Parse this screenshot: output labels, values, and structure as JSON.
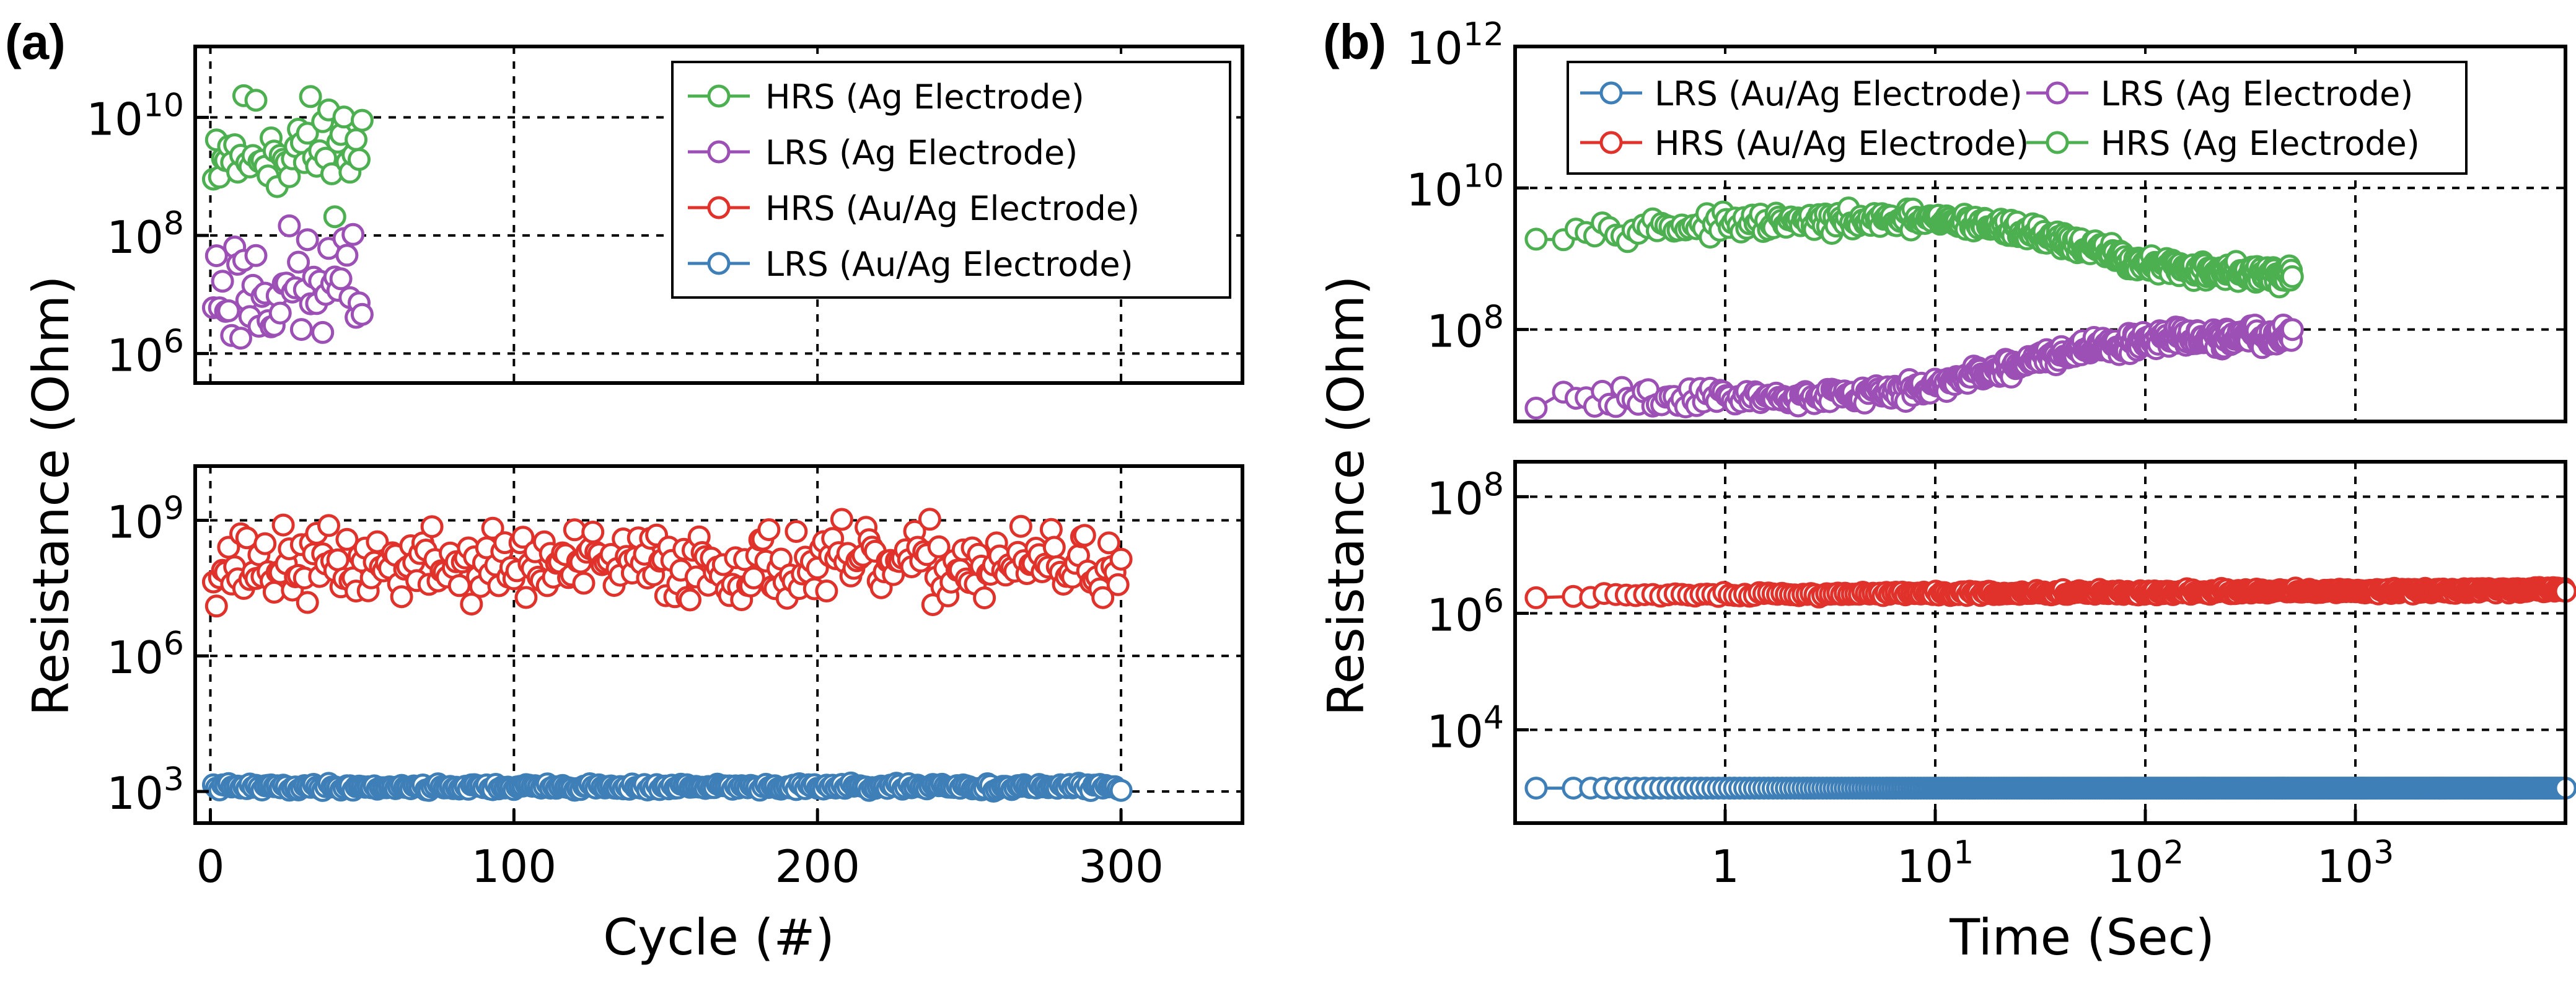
{
  "colors": {
    "green": "#4caf50",
    "purple": "#9c4fb5",
    "red": "#e0312a",
    "blue": "#3f7fb8"
  },
  "chart_data": [
    {
      "panel_label": "(a)",
      "type": "scatter",
      "xlabel": "Cycle (#)",
      "ylabel": "Resistance (Ohm)",
      "xlim": [
        -5,
        340
      ],
      "x_ticks": [
        {
          "value": 0,
          "label": "0"
        },
        {
          "value": 100,
          "label": "100"
        },
        {
          "value": 200,
          "label": "200"
        },
        {
          "value": 300,
          "label": "300"
        }
      ],
      "y_log": true,
      "grid": true,
      "broken_axis": true,
      "upper_ylim_log10": [
        5.5,
        11.2
      ],
      "upper_y_ticks": [
        {
          "exp": 6,
          "base": "10",
          "sup": "6"
        },
        {
          "exp": 8,
          "base": "10",
          "sup": "8"
        },
        {
          "exp": 10,
          "base": "10",
          "sup": "10"
        }
      ],
      "lower_ylim_log10": [
        2.3,
        10.2
      ],
      "lower_y_ticks": [
        {
          "exp": 3,
          "base": "10",
          "sup": "3"
        },
        {
          "exp": 6,
          "base": "10",
          "sup": "6"
        },
        {
          "exp": 9,
          "base": "10",
          "sup": "9"
        }
      ],
      "legend": {
        "position": "top-right",
        "entries": [
          {
            "label": "HRS (Ag Electrode)",
            "color": "green"
          },
          {
            "label": "LRS (Ag Electrode)",
            "color": "purple"
          },
          {
            "label": "HRS (Au/Ag Electrode)",
            "color": "red"
          },
          {
            "label": "LRS (Au/Ag Electrode)",
            "color": "blue"
          }
        ]
      },
      "series": [
        {
          "name": "HRS (Ag Electrode)",
          "color": "green",
          "axis": "upper",
          "x_range": [
            1,
            50
          ],
          "log10_center": 9.5,
          "log10_spread": 0.6,
          "seed": 11
        },
        {
          "name": "LRS (Ag Electrode)",
          "color": "purple",
          "axis": "upper",
          "x_range": [
            1,
            50
          ],
          "log10_center": 7.1,
          "log10_spread": 0.7,
          "seed": 23
        },
        {
          "name": "HRS (Au/Ag Electrode)",
          "color": "red",
          "axis": "lower",
          "x_range": [
            1,
            300
          ],
          "log10_center": 8.0,
          "log10_spread": 0.55,
          "seed": 37
        },
        {
          "name": "LRS (Au/Ag Electrode)",
          "color": "blue",
          "axis": "lower",
          "x_range": [
            1,
            300
          ],
          "log10_center": 3.1,
          "log10_spread": 0.05,
          "seed": 41
        }
      ]
    },
    {
      "panel_label": "(b)",
      "type": "line",
      "xlabel": "Time (Sec)",
      "ylabel": "Resistance (Ohm)",
      "x_log": true,
      "xlim_log10": [
        -1,
        4
      ],
      "x_ticks": [
        {
          "exp": 0,
          "base": "1",
          "sup": ""
        },
        {
          "exp": 1,
          "base": "10",
          "sup": "1"
        },
        {
          "exp": 2,
          "base": "10",
          "sup": "2"
        },
        {
          "exp": 3,
          "base": "10",
          "sup": "3"
        }
      ],
      "y_log": true,
      "grid": true,
      "broken_axis": true,
      "upper_ylim_log10": [
        6.7,
        12
      ],
      "upper_y_ticks": [
        {
          "exp": 8,
          "base": "10",
          "sup": "8"
        },
        {
          "exp": 10,
          "base": "10",
          "sup": "10"
        },
        {
          "exp": 12,
          "base": "10",
          "sup": "12"
        }
      ],
      "lower_ylim_log10": [
        2.4,
        8.6
      ],
      "lower_y_ticks": [
        {
          "exp": 4,
          "base": "10",
          "sup": "4"
        },
        {
          "exp": 6,
          "base": "10",
          "sup": "6"
        },
        {
          "exp": 8,
          "base": "10",
          "sup": "8"
        }
      ],
      "legend": {
        "position": "top",
        "entries": [
          {
            "label": "LRS (Au/Ag Electrode)",
            "color": "blue"
          },
          {
            "label": "LRS (Ag Electrode)",
            "color": "purple"
          },
          {
            "label": "HRS (Au/Ag Electrode)",
            "color": "red"
          },
          {
            "label": "HRS (Ag Electrode)",
            "color": "green"
          }
        ]
      },
      "series": [
        {
          "name": "HRS (Ag Electrode)",
          "color": "green",
          "axis": "upper",
          "t_log10_range": [
            -0.9,
            2.7
          ],
          "profile": [
            [
              -0.9,
              9.4
            ],
            [
              0.2,
              9.5
            ],
            [
              0.9,
              9.55
            ],
            [
              1.2,
              9.5
            ],
            [
              1.5,
              9.35
            ],
            [
              1.8,
              9.1
            ],
            [
              2.0,
              8.9
            ],
            [
              2.7,
              8.75
            ]
          ],
          "noise": 0.15
        },
        {
          "name": "LRS (Ag Electrode)",
          "color": "purple",
          "axis": "upper",
          "t_log10_range": [
            -0.9,
            2.7
          ],
          "profile": [
            [
              -0.9,
              7.0
            ],
            [
              0.2,
              7.05
            ],
            [
              0.8,
              7.1
            ],
            [
              1.2,
              7.35
            ],
            [
              1.5,
              7.6
            ],
            [
              1.8,
              7.75
            ],
            [
              2.0,
              7.85
            ],
            [
              2.7,
              7.9
            ]
          ],
          "noise": 0.15
        },
        {
          "name": "HRS (Au/Ag Electrode)",
          "color": "red",
          "axis": "lower",
          "t_log10_range": [
            -0.9,
            4.0
          ],
          "profile": [
            [
              -0.9,
              6.3
            ],
            [
              4.0,
              6.4
            ]
          ],
          "noise": 0.05
        },
        {
          "name": "LRS (Au/Ag Electrode)",
          "color": "blue",
          "axis": "lower",
          "t_log10_range": [
            -0.9,
            4.0
          ],
          "profile": [
            [
              -0.9,
              3.0
            ],
            [
              4.0,
              3.0
            ]
          ],
          "noise": 0.0
        }
      ]
    }
  ]
}
